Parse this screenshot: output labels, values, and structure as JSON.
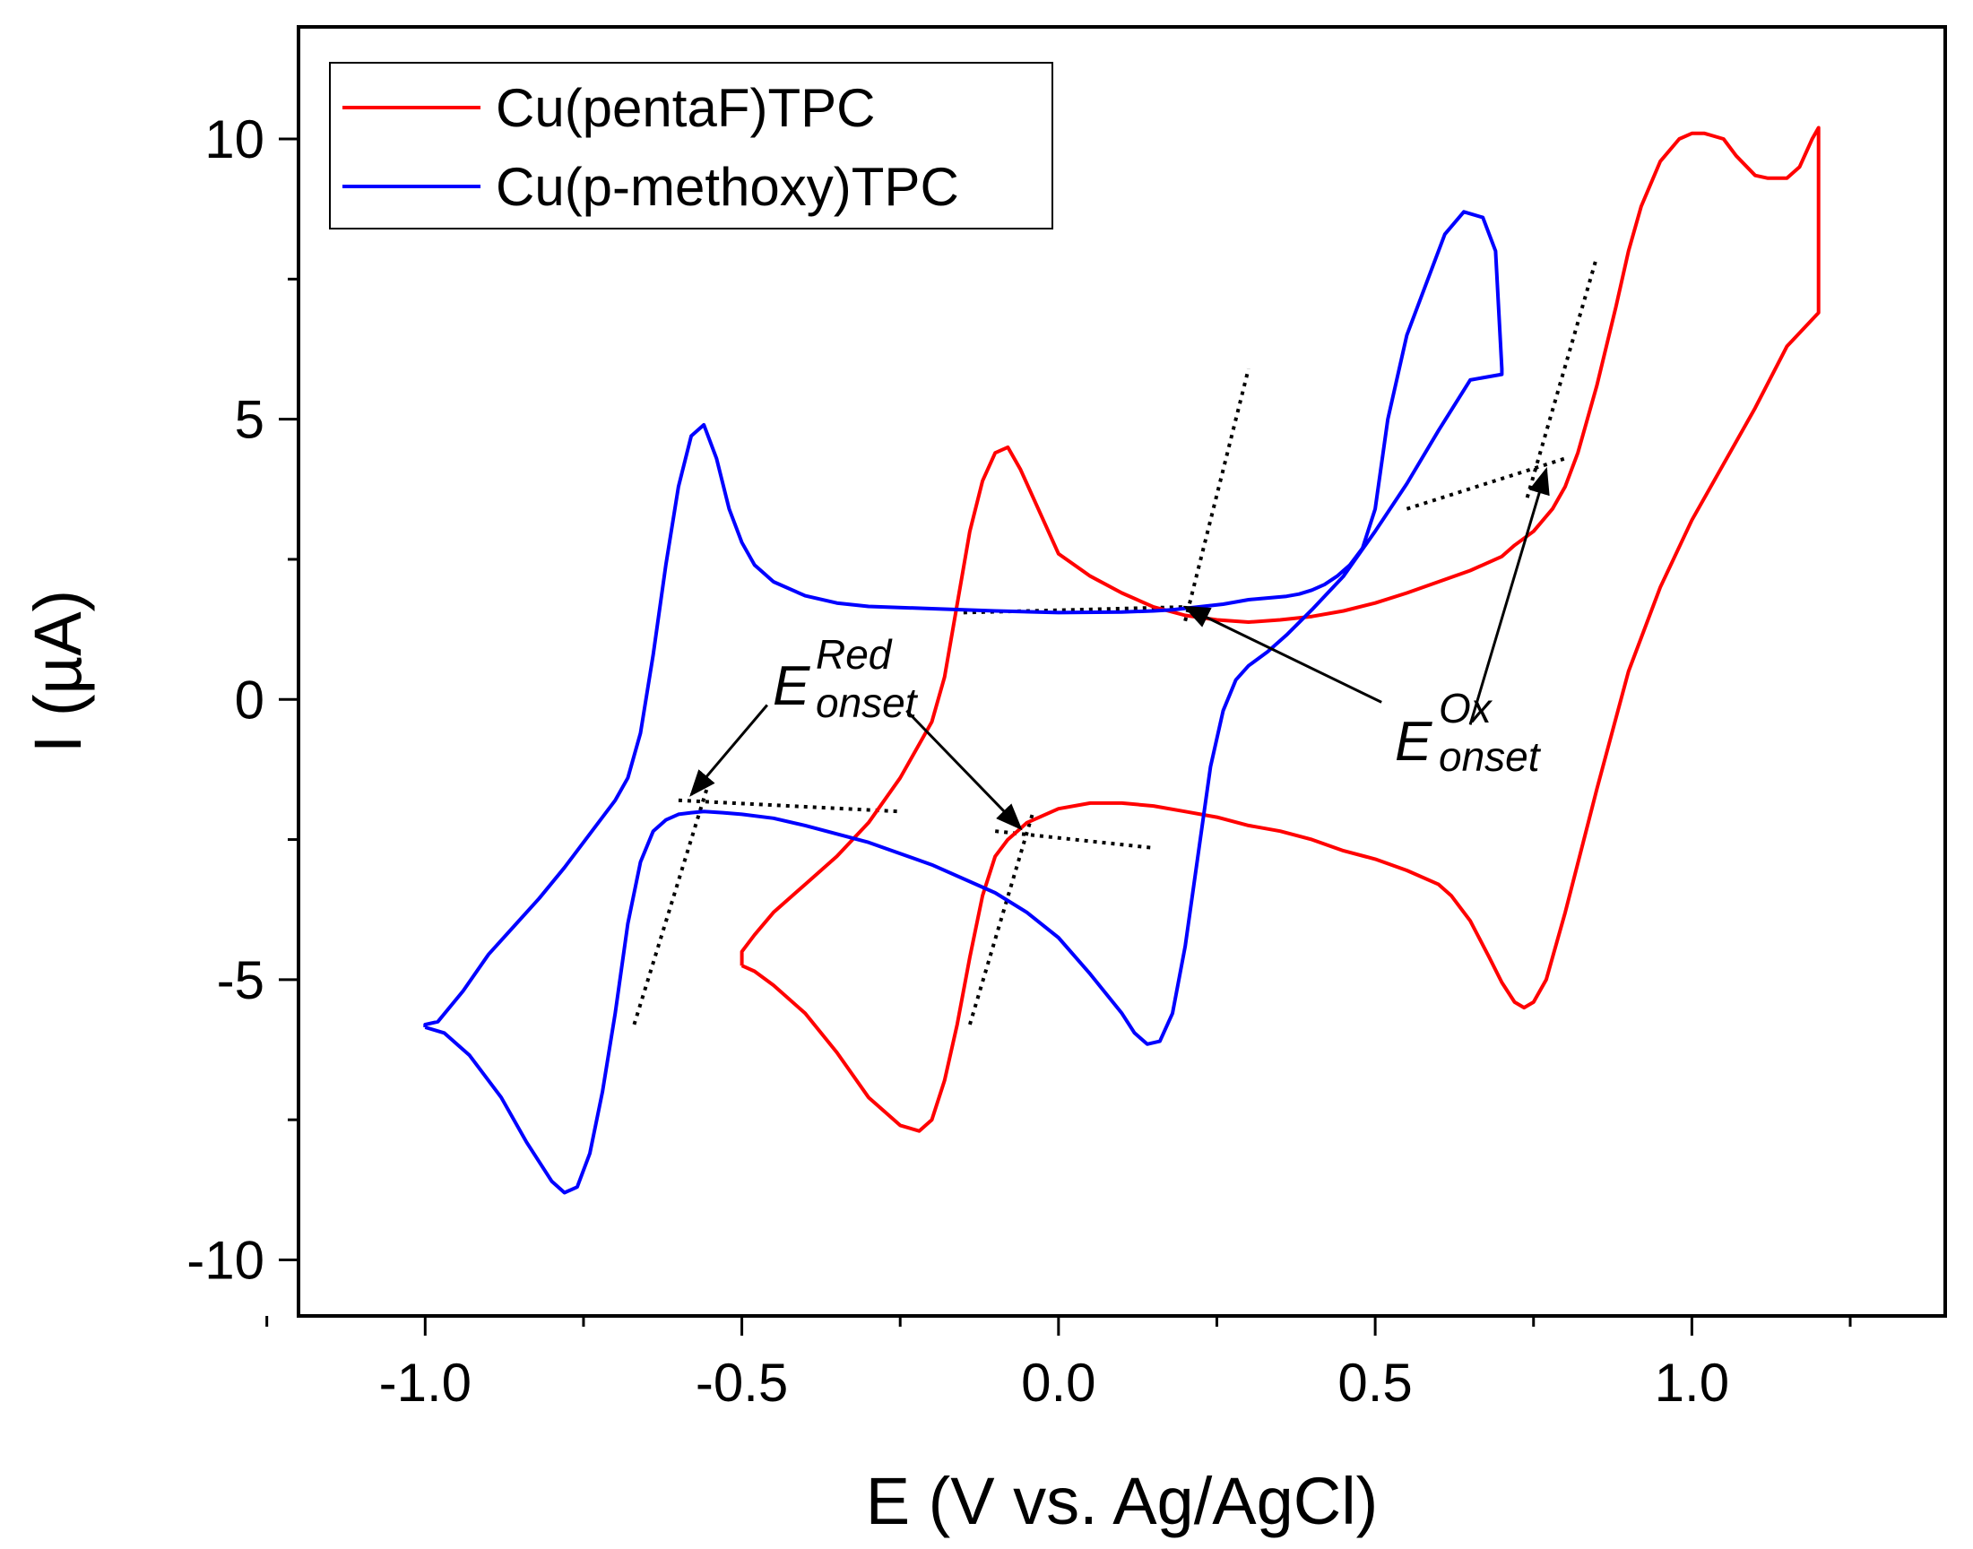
{
  "chart_data": {
    "type": "line",
    "xlabel": "E (V vs. Ag/AgCl)",
    "ylabel": "I (µA)",
    "xlim": [
      -1.2,
      1.4
    ],
    "ylim": [
      -11,
      12
    ],
    "xticks": [
      -1.0,
      -0.5,
      0.0,
      0.5,
      1.0
    ],
    "xtick_labels": [
      "-1.0",
      "-0.5",
      "0.0",
      "0.5",
      "1.0"
    ],
    "yticks": [
      -10,
      -5,
      0,
      5,
      10
    ],
    "ytick_labels": [
      "-10",
      "-5",
      "0",
      "5",
      "10"
    ],
    "grid": false,
    "legend_position": "top-left",
    "series": [
      {
        "name": "Cu(pentaF)TPC",
        "color": "#ff0000",
        "x": [
          -0.5,
          -0.48,
          -0.45,
          -0.4,
          -0.35,
          -0.3,
          -0.25,
          -0.22,
          -0.2,
          -0.18,
          -0.16,
          -0.14,
          -0.12,
          -0.1,
          -0.08,
          -0.06,
          -0.05,
          -0.04,
          -0.02,
          0.0,
          0.05,
          0.1,
          0.15,
          0.2,
          0.25,
          0.3,
          0.35,
          0.4,
          0.45,
          0.5,
          0.55,
          0.6,
          0.62,
          0.65,
          0.68,
          0.7,
          0.72,
          0.735,
          0.75,
          0.77,
          0.8,
          0.85,
          0.9,
          0.95,
          1.0,
          1.05,
          1.1,
          1.15,
          1.2,
          1.2,
          1.19,
          1.17,
          1.15,
          1.12,
          1.1,
          1.07,
          1.05,
          1.02,
          1.0,
          0.98,
          0.95,
          0.92,
          0.9,
          0.88,
          0.85,
          0.82,
          0.8,
          0.78,
          0.75,
          0.72,
          0.7,
          0.65,
          0.6,
          0.55,
          0.5,
          0.45,
          0.4,
          0.35,
          0.3,
          0.25,
          0.2,
          0.15,
          0.1,
          0.05,
          0.0,
          -0.02,
          -0.04,
          -0.06,
          -0.08,
          -0.1,
          -0.12,
          -0.14,
          -0.16,
          -0.18,
          -0.2,
          -0.25,
          -0.3,
          -0.35,
          -0.4,
          -0.45,
          -0.48,
          -0.5,
          -0.5
        ],
        "y": [
          -4.75,
          -4.85,
          -5.1,
          -5.6,
          -6.3,
          -7.1,
          -7.6,
          -7.7,
          -7.5,
          -6.8,
          -5.8,
          -4.6,
          -3.5,
          -2.8,
          -2.5,
          -2.3,
          -2.2,
          -2.15,
          -2.05,
          -1.95,
          -1.85,
          -1.85,
          -1.9,
          -2.0,
          -2.1,
          -2.25,
          -2.35,
          -2.5,
          -2.7,
          -2.85,
          -3.05,
          -3.3,
          -3.5,
          -3.95,
          -4.6,
          -5.05,
          -5.4,
          -5.5,
          -5.4,
          -5.0,
          -3.8,
          -1.6,
          0.5,
          2.0,
          3.2,
          4.2,
          5.2,
          6.3,
          6.9,
          10.2,
          10.0,
          9.5,
          9.3,
          9.3,
          9.35,
          9.7,
          10.0,
          10.1,
          10.1,
          10.0,
          9.6,
          8.8,
          8.0,
          7.0,
          5.6,
          4.4,
          3.8,
          3.4,
          3.0,
          2.75,
          2.55,
          2.3,
          2.1,
          1.9,
          1.72,
          1.58,
          1.48,
          1.42,
          1.38,
          1.42,
          1.5,
          1.65,
          1.9,
          2.2,
          2.6,
          3.1,
          3.6,
          4.1,
          4.5,
          4.4,
          3.9,
          3.0,
          1.7,
          0.4,
          -0.4,
          -1.4,
          -2.2,
          -2.8,
          -3.3,
          -3.8,
          -4.2,
          -4.5,
          -4.75
        ]
      },
      {
        "name": "Cu(p-methoxy)TPC",
        "color": "#0000ff",
        "x": [
          -1.0,
          -0.97,
          -0.93,
          -0.88,
          -0.84,
          -0.8,
          -0.78,
          -0.76,
          -0.74,
          -0.72,
          -0.7,
          -0.68,
          -0.66,
          -0.64,
          -0.62,
          -0.6,
          -0.58,
          -0.56,
          -0.53,
          -0.5,
          -0.45,
          -0.4,
          -0.3,
          -0.2,
          -0.1,
          -0.05,
          0.0,
          0.05,
          0.1,
          0.12,
          0.14,
          0.16,
          0.18,
          0.2,
          0.22,
          0.24,
          0.26,
          0.28,
          0.3,
          0.33,
          0.36,
          0.4,
          0.45,
          0.5,
          0.55,
          0.6,
          0.65,
          0.7,
          0.7,
          0.69,
          0.67,
          0.64,
          0.61,
          0.58,
          0.55,
          0.52,
          0.5,
          0.48,
          0.46,
          0.44,
          0.42,
          0.4,
          0.38,
          0.36,
          0.34,
          0.32,
          0.3,
          0.28,
          0.26,
          0.22,
          0.18,
          0.15,
          0.1,
          0.0,
          -0.1,
          -0.2,
          -0.3,
          -0.35,
          -0.4,
          -0.45,
          -0.48,
          -0.5,
          -0.52,
          -0.54,
          -0.56,
          -0.58,
          -0.6,
          -0.62,
          -0.64,
          -0.66,
          -0.68,
          -0.7,
          -0.74,
          -0.78,
          -0.82,
          -0.86,
          -0.9,
          -0.94,
          -0.98,
          -1.0,
          -1.0
        ],
        "y": [
          -5.85,
          -5.95,
          -6.35,
          -7.1,
          -7.9,
          -8.6,
          -8.8,
          -8.7,
          -8.1,
          -7.0,
          -5.6,
          -4.0,
          -2.9,
          -2.35,
          -2.15,
          -2.05,
          -2.02,
          -2.0,
          -2.02,
          -2.05,
          -2.12,
          -2.25,
          -2.55,
          -2.95,
          -3.45,
          -3.8,
          -4.25,
          -4.9,
          -5.6,
          -5.95,
          -6.15,
          -6.1,
          -5.6,
          -4.4,
          -2.8,
          -1.2,
          -0.2,
          0.35,
          0.6,
          0.85,
          1.15,
          1.6,
          2.2,
          3.0,
          3.85,
          4.8,
          5.7,
          5.8,
          5.9,
          8.0,
          8.6,
          8.7,
          8.3,
          7.4,
          6.5,
          5.0,
          3.4,
          2.7,
          2.4,
          2.2,
          2.05,
          1.95,
          1.88,
          1.84,
          1.82,
          1.8,
          1.78,
          1.74,
          1.7,
          1.65,
          1.6,
          1.58,
          1.56,
          1.55,
          1.58,
          1.62,
          1.66,
          1.72,
          1.85,
          2.1,
          2.4,
          2.8,
          3.4,
          4.3,
          4.9,
          4.7,
          3.8,
          2.4,
          0.8,
          -0.6,
          -1.4,
          -1.8,
          -2.4,
          -3.0,
          -3.55,
          -4.05,
          -4.55,
          -5.2,
          -5.75,
          -5.8,
          -5.85
        ]
      }
    ],
    "annotations": [
      {
        "main": "E",
        "sub": "onset",
        "sup": "Red"
      },
      {
        "main": "E",
        "sub": "onset",
        "sup": "Ox"
      }
    ],
    "tangent_lines": [
      {
        "x": [
          -0.6,
          -0.25
        ],
        "y": [
          -1.8,
          -2.0
        ]
      },
      {
        "x": [
          -0.67,
          -0.55
        ],
        "y": [
          -5.8,
          -1.4
        ]
      },
      {
        "x": [
          -0.1,
          0.15
        ],
        "y": [
          -2.35,
          -2.65
        ]
      },
      {
        "x": [
          -0.14,
          -0.04
        ],
        "y": [
          -5.8,
          -2.0
        ]
      },
      {
        "x": [
          -0.15,
          0.2
        ],
        "y": [
          1.55,
          1.65
        ]
      },
      {
        "x": [
          0.2,
          0.3
        ],
        "y": [
          1.4,
          5.9
        ]
      },
      {
        "x": [
          0.55,
          0.8
        ],
        "y": [
          3.4,
          4.3
        ]
      },
      {
        "x": [
          0.74,
          0.85
        ],
        "y": [
          3.6,
          7.9
        ]
      }
    ],
    "arrows": [
      {
        "from": [
          -0.46,
          -0.1
        ],
        "to": [
          -0.58,
          -1.7
        ]
      },
      {
        "from": [
          -0.24,
          -0.2
        ],
        "to": [
          -0.06,
          -2.3
        ]
      },
      {
        "from": [
          0.51,
          -0.05
        ],
        "to": [
          0.2,
          1.65
        ]
      },
      {
        "from": [
          0.65,
          -0.45
        ],
        "to": [
          0.77,
          4.1
        ]
      }
    ]
  }
}
